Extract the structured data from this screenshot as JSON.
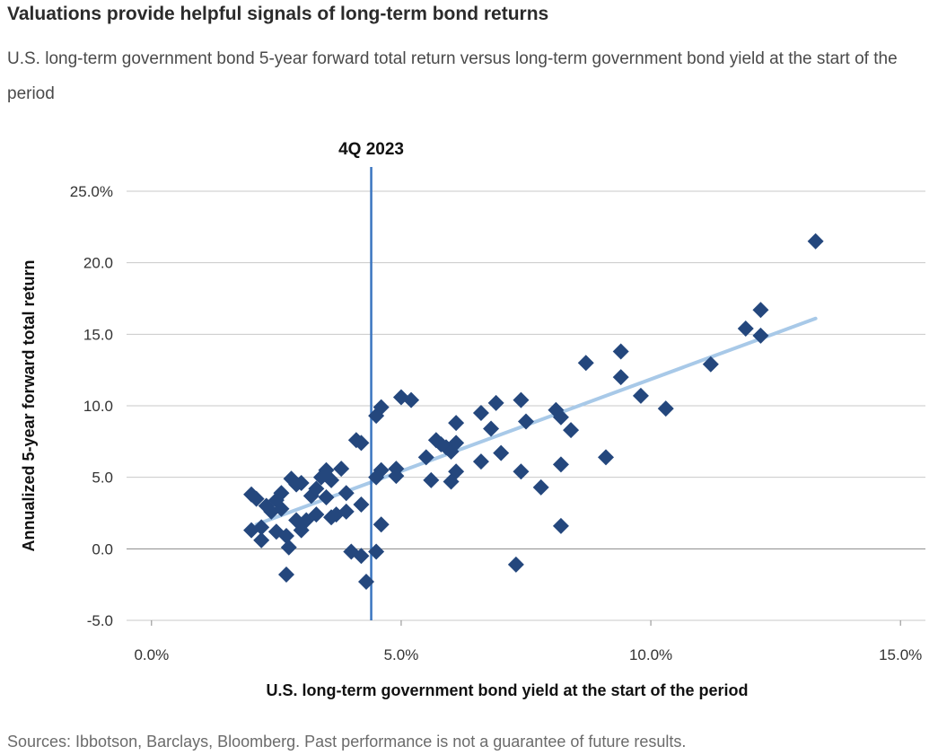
{
  "title": "Valuations provide helpful signals of long-term bond returns",
  "subtitle": "U.S. long-term government bond 5-year forward total return versus long-term government bond yield at the start of the period",
  "footnote": "Sources: Ibbotson, Barclays, Bloomberg. Past performance is not a guarantee of future results.",
  "colors": {
    "point": "#24477d",
    "trend": "#a8c9e8",
    "marker": "#3a75c0",
    "grid": "#c9c9c9",
    "zero": "#8a8a8a"
  },
  "chart_data": {
    "type": "scatter",
    "xlabel": "U.S. long-term government bond yield at the start of the period",
    "ylabel": "Annualized 5-year forward total return",
    "xlim": [
      -0.5,
      15.5
    ],
    "ylim": [
      -5,
      25
    ],
    "x_ticks": [
      {
        "value": 0,
        "label": "0.0%"
      },
      {
        "value": 5,
        "label": "5.0%"
      },
      {
        "value": 10,
        "label": "10.0%"
      },
      {
        "value": 15,
        "label": "15.0%"
      }
    ],
    "y_ticks": [
      {
        "value": 25,
        "label": "25.0%"
      },
      {
        "value": 20,
        "label": "20.0"
      },
      {
        "value": 15,
        "label": "15.0"
      },
      {
        "value": 10,
        "label": "10.0"
      },
      {
        "value": 5,
        "label": "5.0"
      },
      {
        "value": 0,
        "label": "0.0"
      },
      {
        "value": -5,
        "label": "-5.0"
      }
    ],
    "grid": "horizontal",
    "marker": {
      "x": 4.4,
      "label": "4Q 2023"
    },
    "trendline": {
      "x": [
        2.1,
        13.3
      ],
      "y": [
        1.7,
        16.1
      ]
    },
    "points": [
      [
        2.0,
        3.8
      ],
      [
        2.1,
        3.5
      ],
      [
        2.0,
        1.3
      ],
      [
        2.2,
        1.5
      ],
      [
        2.2,
        0.6
      ],
      [
        2.3,
        3.0
      ],
      [
        2.4,
        2.6
      ],
      [
        2.5,
        1.2
      ],
      [
        2.5,
        3.4
      ],
      [
        2.6,
        2.8
      ],
      [
        2.6,
        3.9
      ],
      [
        2.7,
        0.9
      ],
      [
        2.8,
        4.9
      ],
      [
        2.9,
        2.0
      ],
      [
        2.7,
        -1.8
      ],
      [
        2.75,
        0.1
      ],
      [
        2.9,
        4.5
      ],
      [
        3.0,
        1.3
      ],
      [
        3.0,
        4.6
      ],
      [
        3.1,
        2.0
      ],
      [
        3.2,
        3.7
      ],
      [
        3.3,
        4.2
      ],
      [
        3.3,
        2.4
      ],
      [
        3.4,
        5.0
      ],
      [
        3.5,
        5.5
      ],
      [
        3.5,
        3.6
      ],
      [
        3.6,
        2.2
      ],
      [
        3.6,
        4.8
      ],
      [
        3.7,
        2.4
      ],
      [
        3.8,
        5.6
      ],
      [
        3.9,
        2.6
      ],
      [
        3.9,
        3.9
      ],
      [
        4.0,
        -0.2
      ],
      [
        4.1,
        7.6
      ],
      [
        4.2,
        7.4
      ],
      [
        4.2,
        -0.5
      ],
      [
        4.2,
        3.1
      ],
      [
        4.3,
        -2.3
      ],
      [
        4.5,
        9.3
      ],
      [
        4.5,
        5.0
      ],
      [
        4.6,
        9.9
      ],
      [
        4.6,
        5.5
      ],
      [
        4.6,
        1.7
      ],
      [
        4.5,
        -0.2
      ],
      [
        4.9,
        5.6
      ],
      [
        4.9,
        5.1
      ],
      [
        5.0,
        10.6
      ],
      [
        5.2,
        10.4
      ],
      [
        5.5,
        6.4
      ],
      [
        5.6,
        4.8
      ],
      [
        5.7,
        7.6
      ],
      [
        5.8,
        7.3
      ],
      [
        5.9,
        7.1
      ],
      [
        6.0,
        6.8
      ],
      [
        6.1,
        7.4
      ],
      [
        6.1,
        8.8
      ],
      [
        6.1,
        5.4
      ],
      [
        6.0,
        4.7
      ],
      [
        6.6,
        6.1
      ],
      [
        6.6,
        9.5
      ],
      [
        6.8,
        8.4
      ],
      [
        6.9,
        10.2
      ],
      [
        7.0,
        6.7
      ],
      [
        7.4,
        10.4
      ],
      [
        7.5,
        8.9
      ],
      [
        7.4,
        5.4
      ],
      [
        7.3,
        -1.1
      ],
      [
        7.8,
        4.3
      ],
      [
        8.1,
        9.7
      ],
      [
        8.2,
        9.2
      ],
      [
        8.4,
        8.3
      ],
      [
        8.2,
        5.9
      ],
      [
        8.2,
        1.6
      ],
      [
        8.7,
        13.0
      ],
      [
        9.1,
        6.4
      ],
      [
        9.4,
        13.8
      ],
      [
        9.4,
        12.0
      ],
      [
        9.8,
        10.7
      ],
      [
        10.3,
        9.8
      ],
      [
        11.2,
        12.9
      ],
      [
        11.9,
        15.4
      ],
      [
        12.2,
        16.7
      ],
      [
        12.2,
        14.9
      ],
      [
        13.3,
        21.5
      ]
    ]
  }
}
